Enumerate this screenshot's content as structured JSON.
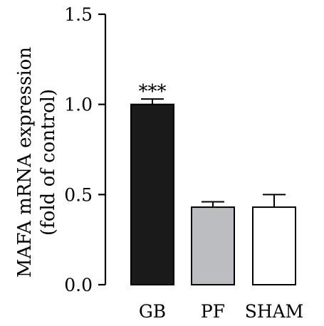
{
  "chart_data": {
    "type": "bar",
    "title": "",
    "categories": [
      "GB",
      "PF",
      "SHAM"
    ],
    "values": [
      1.0,
      0.43,
      0.43
    ],
    "errors": [
      0.03,
      0.03,
      0.07
    ],
    "colors": [
      "#1a1a1a",
      "#bcbdc0",
      "#ffffff"
    ],
    "annotations": [
      "***",
      "",
      ""
    ],
    "ylabel_line1": "MAFA mRNA expression",
    "ylabel_line2": "(fold of control)",
    "xlabel": "",
    "ylim": [
      0,
      1.5
    ],
    "yticks": [
      "0.0",
      "0.5",
      "1.0",
      "1.5"
    ],
    "grid": false
  }
}
